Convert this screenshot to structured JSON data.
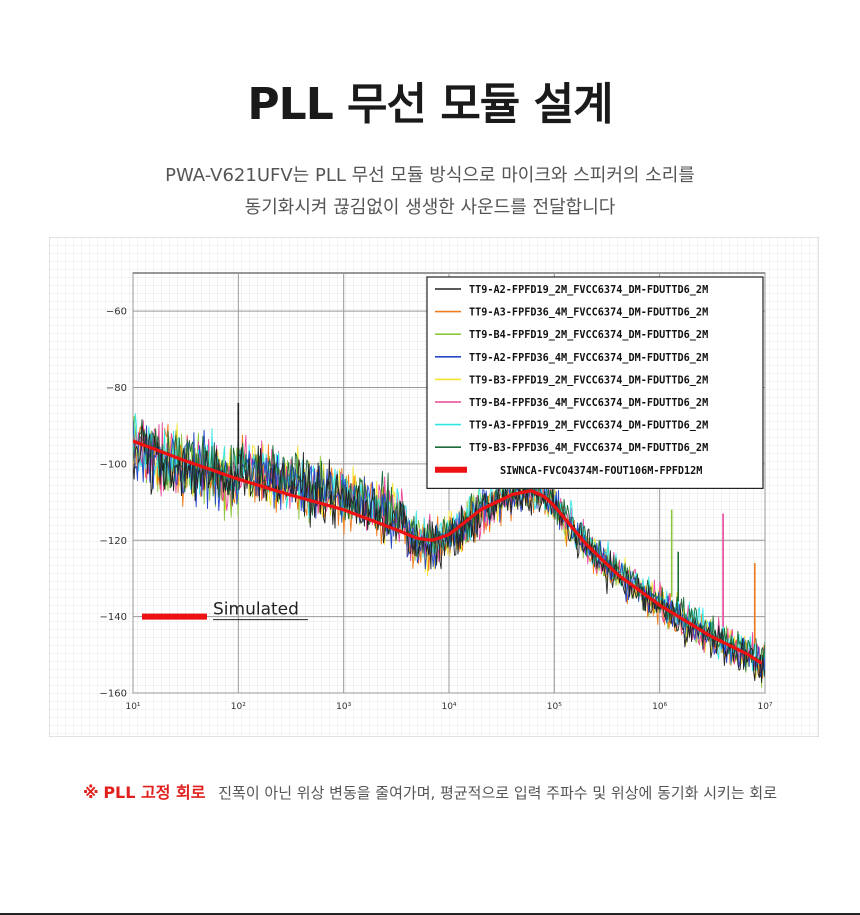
{
  "page": {
    "title": "PLL 무선 모듈 설계",
    "subtitle_lines": [
      "PWA-V621UFV는 PLL 무선 모듈 방식으로 마이크와 스피커의 소리를",
      "동기화시켜 끊김없이 생생한 사운드를 전달합니다"
    ],
    "footnote": {
      "mark": "※",
      "label": "PLL 고정 회로",
      "text": "진폭이 아닌 위상 변동을 줄여가며, 평균적으로 입력 주파수 및 위상에 동기화 시키는 회로"
    }
  },
  "chart_data": {
    "type": "line",
    "title": "",
    "xlabel": "",
    "ylabel": "",
    "x_scale": "log",
    "xlim": [
      10,
      10000000
    ],
    "ylim": [
      -160,
      -50
    ],
    "x_ticks": [
      10,
      100,
      1000,
      10000,
      100000,
      1000000,
      10000000
    ],
    "x_tick_labels": [
      "10¹",
      "10²",
      "10³",
      "10⁴",
      "10⁵",
      "10⁶",
      "10⁷"
    ],
    "y_ticks": [
      -60,
      -80,
      -100,
      -120,
      -140,
      -160
    ],
    "y_tick_labels": [
      "−60",
      "−80",
      "−100",
      "−120",
      "−140",
      "−160"
    ],
    "grid": true,
    "legend_position": "top-right",
    "annotation": {
      "text": "Simulated",
      "color": "#ee1111"
    },
    "series": [
      {
        "name": "TT9-A2-FPFD19_2M_FVCC6374_DM-FDUTTD6_2M",
        "color": "#222222",
        "style": "measured"
      },
      {
        "name": "TT9-A3-FPFD36_4M_FVCC6374_DM-FDUTTD6_2M",
        "color": "#f07b1c",
        "style": "measured"
      },
      {
        "name": "TT9-B4-FPFD19_2M_FVCC6374_DM-FDUTTD6_2M",
        "color": "#8cc63f",
        "style": "measured"
      },
      {
        "name": "TT9-A2-FPFD36_4M_FVCC6374_DM-FDUTTD6_2M",
        "color": "#2747c9",
        "style": "measured"
      },
      {
        "name": "TT9-B3-FPFD19_2M_FVCC6374_DM-FDUTTD6_2M",
        "color": "#f5e431",
        "style": "measured"
      },
      {
        "name": "TT9-B4-FPFD36_4M_FVCC6374_DM-FDUTTD6_2M",
        "color": "#e8479a",
        "style": "measured"
      },
      {
        "name": "TT9-A3-FPFD19_2M_FVCC6374_DM-FDUTTD6_2M",
        "color": "#33e6e6",
        "style": "measured"
      },
      {
        "name": "TT9-B3-FPFD36_4M_FVCC6374_DM-FDUTTD6_2M",
        "color": "#1e6b3a",
        "style": "measured"
      },
      {
        "name": "SIWNCA-FVCO4374M-FOUT106M-FPFD12M",
        "color": "#ee1111",
        "style": "simulated"
      }
    ],
    "simulated_curve": {
      "x": [
        10,
        30,
        100,
        300,
        1000,
        3000,
        5000,
        7000,
        10000,
        20000,
        40000,
        60000,
        80000,
        100000,
        200000,
        400000,
        1000000,
        3000000,
        7000000,
        9000000
      ],
      "y": [
        -94,
        -99,
        -104,
        -108,
        -112,
        -117,
        -119.5,
        -120,
        -118.5,
        -112,
        -108,
        -107,
        -108.5,
        -111,
        -121,
        -129,
        -137,
        -145,
        -150,
        -152
      ]
    },
    "spurs": [
      {
        "x": 100,
        "y": -84,
        "color": "#222222"
      },
      {
        "x": 1300000,
        "y": -112,
        "color": "#8cc63f"
      },
      {
        "x": 1500000,
        "y": -123,
        "color": "#1e6b3a"
      },
      {
        "x": 4000000,
        "y": -113,
        "color": "#e8479a"
      },
      {
        "x": 8000000,
        "y": -126,
        "color": "#f07b1c"
      }
    ]
  }
}
